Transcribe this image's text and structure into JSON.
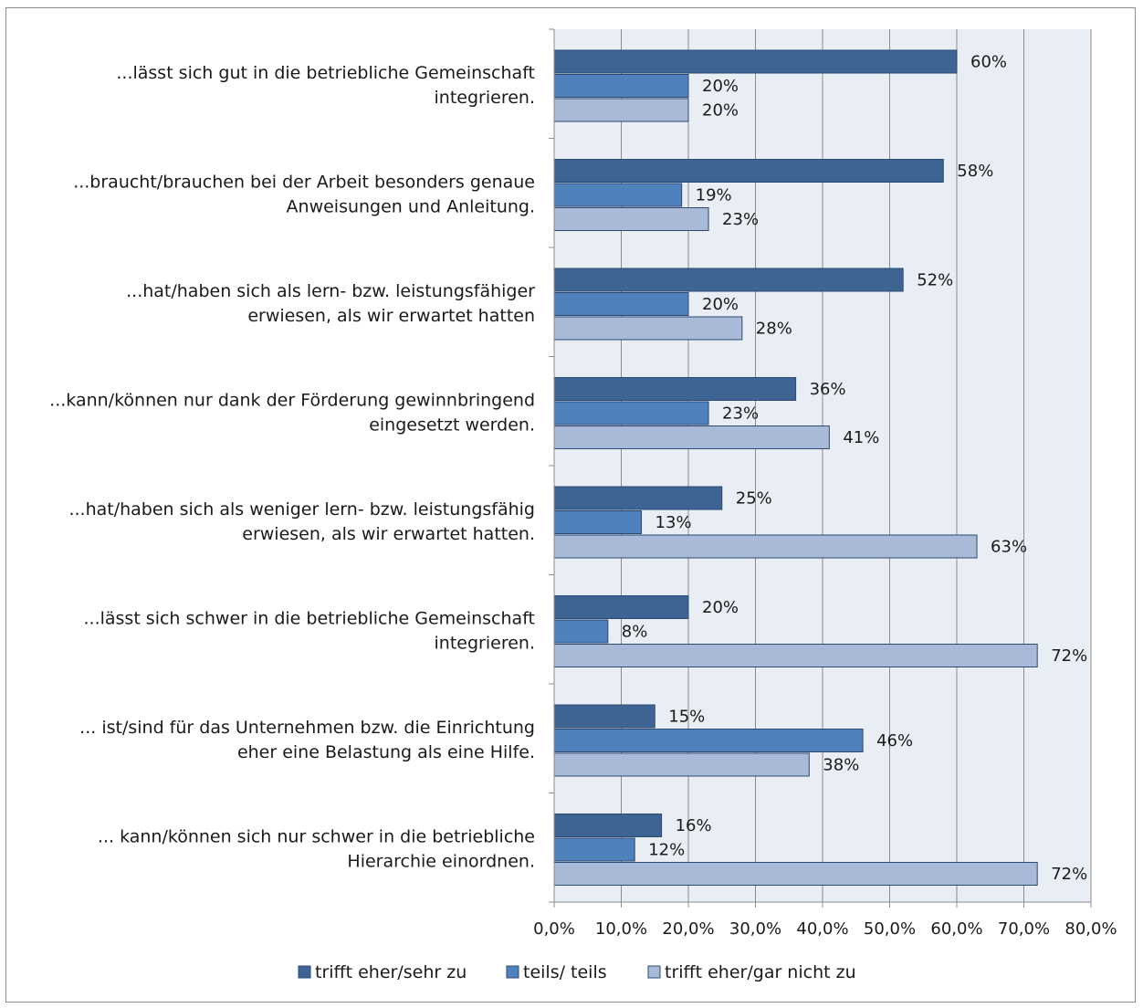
{
  "chart_data": {
    "type": "bar",
    "orientation": "horizontal",
    "categories": [
      [
        "...lässt sich gut in die betriebliche Gemeinschaft",
        "integrieren."
      ],
      [
        "...braucht/brauchen bei der Arbeit besonders genaue",
        "Anweisungen und Anleitung."
      ],
      [
        "...hat/haben sich als lern- bzw. leistungsfähiger",
        "erwiesen, als wir erwartet hatten"
      ],
      [
        "...kann/können nur dank der Förderung gewinnbringend",
        "eingesetzt werden."
      ],
      [
        "...hat/haben sich als weniger lern- bzw. leistungsfähig",
        "erwiesen, als wir erwartet hatten."
      ],
      [
        "...lässt sich schwer in die betriebliche Gemeinschaft",
        "integrieren."
      ],
      [
        "... ist/sind für das Unternehmen bzw. die Einrichtung",
        "eher eine Belastung als eine Hilfe."
      ],
      [
        "... kann/können sich nur schwer in die betriebliche",
        "Hierarchie einordnen."
      ]
    ],
    "series": [
      {
        "name": "trifft eher/sehr zu",
        "color": "#3e6494",
        "values": [
          60,
          58,
          52,
          36,
          25,
          20,
          15,
          16
        ],
        "labels": [
          "60%",
          "58%",
          "52%",
          "36%",
          "25%",
          "20%",
          "15%",
          "16%"
        ]
      },
      {
        "name": "teils/ teils",
        "color": "#4f81bd",
        "values": [
          20,
          19,
          20,
          23,
          13,
          8,
          46,
          12
        ],
        "labels": [
          "20%",
          "19%",
          "20%",
          "23%",
          "13%",
          "8%",
          "46%",
          "12%"
        ]
      },
      {
        "name": "trifft eher/gar nicht zu",
        "color": "#a9bad8",
        "values": [
          20,
          23,
          28,
          41,
          63,
          72,
          38,
          72
        ],
        "labels": [
          "20%",
          "23%",
          "28%",
          "41%",
          "63%",
          "72%",
          "38%",
          "72%"
        ]
      }
    ],
    "xlim": [
      0,
      80
    ],
    "xticks": [
      0,
      10,
      20,
      30,
      40,
      50,
      60,
      70,
      80
    ],
    "xtick_labels": [
      "0,0%",
      "10,0%",
      "20,0%",
      "30,0%",
      "40,0%",
      "50,0%",
      "60,0%",
      "70,0%",
      "80,0%"
    ],
    "title": "",
    "xlabel": "",
    "ylabel": "",
    "grid": true,
    "legend_position": "bottom",
    "plot_background": "#e9edf4",
    "gridline_color": "#8c8c8c"
  }
}
